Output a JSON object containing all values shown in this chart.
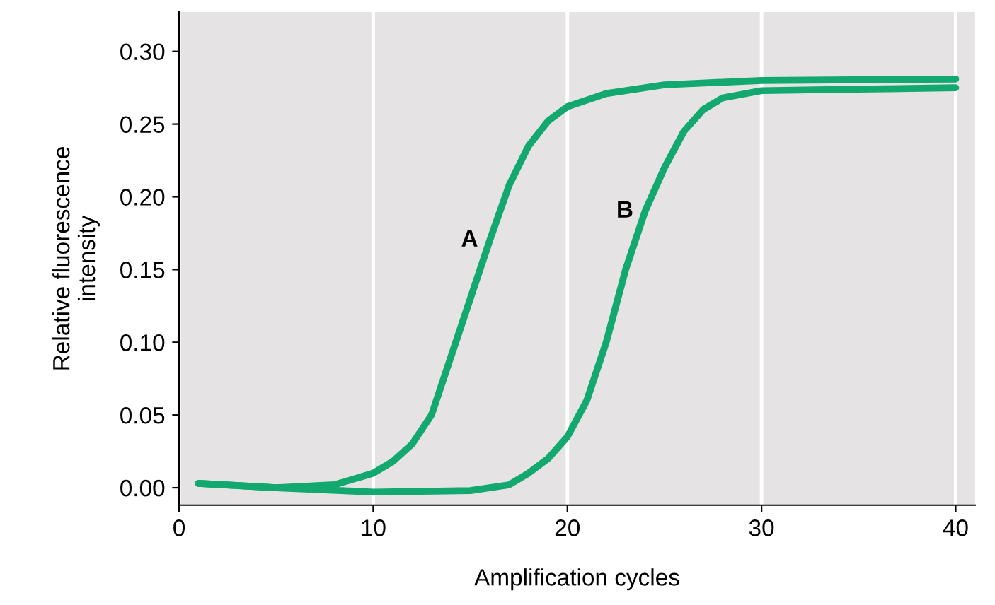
{
  "chart_data": {
    "type": "line",
    "xlabel": "Amplification cycles",
    "ylabel": "Relative fluorescence\nintensity",
    "xlim": [
      0,
      41
    ],
    "ylim": [
      -0.012,
      0.327
    ],
    "xticks": [
      0,
      10,
      20,
      30,
      40
    ],
    "yticks": [
      {
        "value": 0,
        "label": "0.00"
      },
      {
        "value": 0.05,
        "label": "0.05"
      },
      {
        "value": 0.1,
        "label": "0.10"
      },
      {
        "value": 0.15,
        "label": "0.15"
      },
      {
        "value": 0.2,
        "label": "0.20"
      },
      {
        "value": 0.25,
        "label": "0.25"
      },
      {
        "value": 0.3,
        "label": "0.30"
      }
    ],
    "grid": "x",
    "marker": "none",
    "line_style": "solid",
    "series": [
      {
        "name": "A",
        "color": "#13a86f",
        "x": [
          1,
          5,
          8,
          10,
          11,
          12,
          13,
          14,
          15,
          16,
          17,
          18,
          19,
          20,
          22,
          25,
          30,
          40
        ],
        "values": [
          0.003,
          0.0,
          0.002,
          0.01,
          0.018,
          0.03,
          0.05,
          0.09,
          0.13,
          0.17,
          0.208,
          0.235,
          0.252,
          0.262,
          0.271,
          0.277,
          0.28,
          0.281
        ]
      },
      {
        "name": "B",
        "color": "#13a86f",
        "x": [
          1,
          5,
          10,
          15,
          17,
          18,
          19,
          20,
          21,
          22,
          23,
          24,
          25,
          26,
          27,
          28,
          30,
          35,
          40
        ],
        "values": [
          0.003,
          0.0,
          -0.003,
          -0.002,
          0.002,
          0.01,
          0.02,
          0.035,
          0.06,
          0.1,
          0.15,
          0.19,
          0.22,
          0.245,
          0.26,
          0.268,
          0.273,
          0.274,
          0.275
        ]
      }
    ]
  }
}
